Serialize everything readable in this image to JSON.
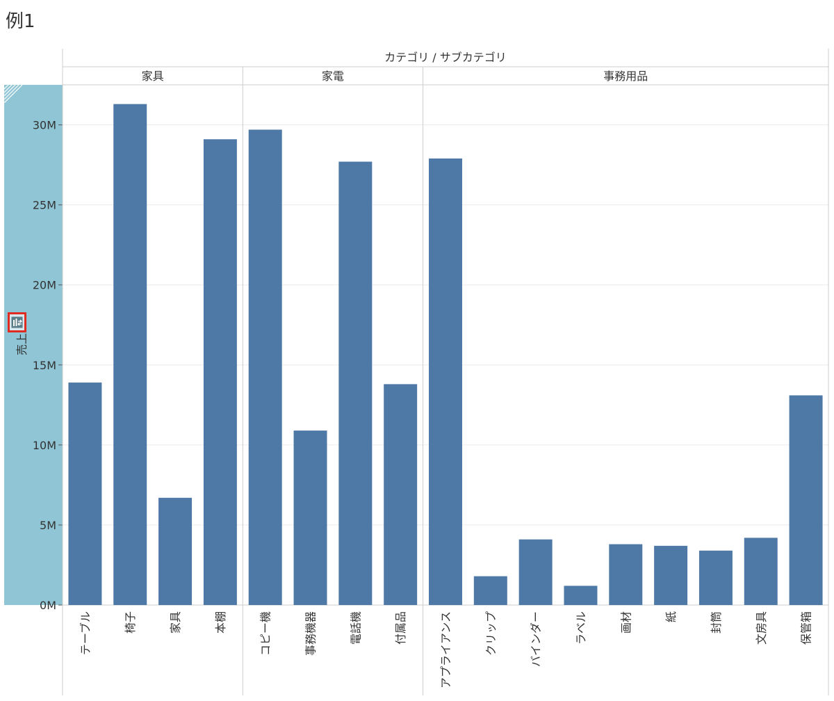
{
  "page_title": "例1",
  "icons": {
    "swap_axis": "swap-axis-icon"
  },
  "colors": {
    "bar": "#4e79a7",
    "axis_highlight": "#8fc5d4",
    "swap_border": "#e02b20",
    "grid": "#ebebeb",
    "divider": "#cccccc"
  },
  "chart_data": {
    "type": "bar",
    "header_title": "カテゴリ / サブカテゴリ",
    "ylabel": "売上",
    "ylim": [
      0,
      32500000
    ],
    "yticks": [
      {
        "value": 0,
        "label": "0M"
      },
      {
        "value": 5000000,
        "label": "5M"
      },
      {
        "value": 10000000,
        "label": "10M"
      },
      {
        "value": 15000000,
        "label": "15M"
      },
      {
        "value": 20000000,
        "label": "20M"
      },
      {
        "value": 25000000,
        "label": "25M"
      },
      {
        "value": 30000000,
        "label": "30M"
      }
    ],
    "grid": true,
    "groups": [
      {
        "name": "家具",
        "categories": [
          "テーブル",
          "椅子",
          "家具",
          "本棚"
        ],
        "values": [
          13900000,
          31300000,
          6700000,
          29100000
        ]
      },
      {
        "name": "家電",
        "categories": [
          "コピー機",
          "事務機器",
          "電話機",
          "付属品"
        ],
        "values": [
          29700000,
          10900000,
          27700000,
          13800000
        ]
      },
      {
        "name": "事務用品",
        "categories": [
          "アプライアンス",
          "クリップ",
          "バインダー",
          "ラベル",
          "画材",
          "紙",
          "封筒",
          "文房具",
          "保管箱"
        ],
        "values": [
          27900000,
          1800000,
          4100000,
          1200000,
          3800000,
          3700000,
          3400000,
          4200000,
          13100000
        ]
      }
    ]
  }
}
